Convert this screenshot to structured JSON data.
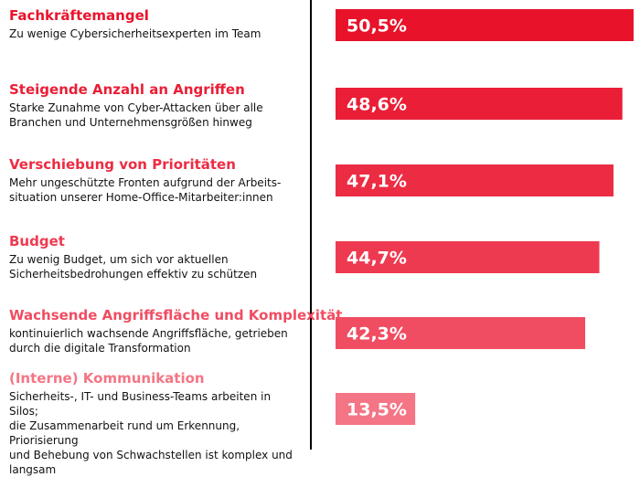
{
  "chart_data": {
    "type": "bar",
    "orientation": "horizontal",
    "xlim": [
      0,
      50.5
    ],
    "value_suffix": "%",
    "grid": false,
    "categories": [
      "Fachkräftemangel",
      "Steigende Anzahl an Angriffen",
      "Verschiebung von Prioritäten",
      "Budget",
      "Wachsende Angriffsfläche und Komplexität",
      "(Interne) Kommunikation"
    ],
    "descriptions": [
      [
        "Zu wenige Cybersicherheitsexperten im Team"
      ],
      [
        "Starke Zunahme von Cyber-Attacken über alle",
        "Branchen und Unternehmensgrößen hinweg"
      ],
      [
        "Mehr ungeschützte Fronten aufgrund der Arbeits-",
        "situation unserer Home-Office-Mitarbeiter:innen"
      ],
      [
        "Zu wenig Budget, um sich vor aktuellen",
        "Sicherheitsbedrohungen effektiv zu schützen"
      ],
      [
        "kontinuierlich wachsende Angriffsfläche, getrieben",
        "durch die digitale Transformation"
      ],
      [
        "Sicherheits-, IT- und Business-Teams arbeiten in Silos;",
        "die Zusammenarbeit rund um Erkennung, Priorisierung",
        "und Behebung von Schwachstellen ist komplex und",
        "langsam"
      ]
    ],
    "values": [
      50.5,
      48.6,
      47.1,
      44.7,
      42.3,
      13.5
    ],
    "value_labels": [
      "50,5%",
      "48,6%",
      "47,1%",
      "44,7%",
      "42,3%",
      "13,5%"
    ],
    "colors": [
      "#e8132b",
      "#ea1e36",
      "#ec2c43",
      "#ee3a51",
      "#f04d62",
      "#f47585"
    ]
  }
}
